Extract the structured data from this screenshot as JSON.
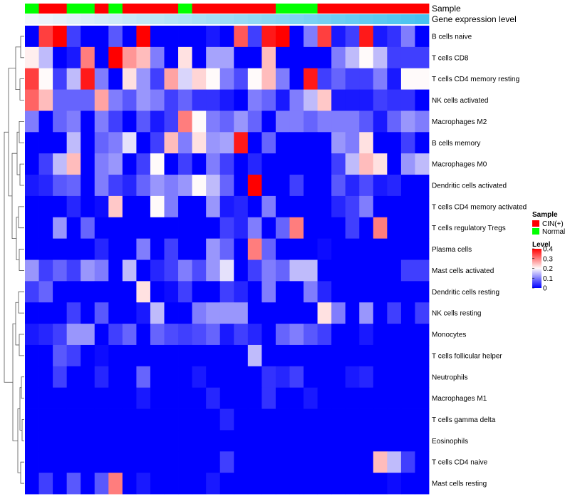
{
  "chart_data": {
    "type": "heatmap",
    "annotation_labels": {
      "sample": "Sample",
      "gene_expression": "Gene expression level"
    },
    "sample_groups": [
      "N",
      "C",
      "C",
      "N",
      "N",
      "C",
      "N",
      "C",
      "C",
      "C",
      "C",
      "N",
      "C",
      "C",
      "C",
      "C",
      "C",
      "C",
      "N",
      "N",
      "N",
      "C",
      "C",
      "C",
      "C",
      "C",
      "C",
      "C",
      "C"
    ],
    "gene_expression": [
      0.02,
      0.04,
      0.06,
      0.08,
      0.1,
      0.12,
      0.14,
      0.16,
      0.18,
      0.2,
      0.22,
      0.24,
      0.26,
      0.28,
      0.3,
      0.32,
      0.34,
      0.36,
      0.38,
      0.4,
      0.42,
      0.44,
      0.46,
      0.48,
      0.5,
      0.52,
      0.54,
      0.56,
      0.58
    ],
    "rows": [
      {
        "label": "B cells naive",
        "values": [
          0,
          0.35,
          0.4,
          0.05,
          0,
          0,
          0.07,
          0,
          0.4,
          0,
          0,
          0,
          0,
          0.02,
          0,
          0.33,
          0.05,
          0.38,
          0.4,
          0,
          0.1,
          0.35,
          0.02,
          0.05,
          0.38,
          0.02,
          0.04,
          0.1,
          0
        ]
      },
      {
        "label": "T cells CD8",
        "values": [
          0.21,
          0.15,
          0,
          0.02,
          0.3,
          0,
          0.4,
          0.28,
          0.25,
          0.1,
          0,
          0.22,
          0,
          0.13,
          0.13,
          0,
          0,
          0.25,
          0,
          0,
          0,
          0,
          0.1,
          0.15,
          0.2,
          0.15,
          0.05,
          0.05,
          0.05
        ]
      },
      {
        "label": "T cells CD4 memory resting",
        "values": [
          0.35,
          0.2,
          0.05,
          0.15,
          0.38,
          0.1,
          0,
          0.22,
          0.12,
          0.05,
          0.27,
          0.17,
          0.23,
          0.2,
          0.1,
          0.06,
          0.2,
          0.25,
          0.1,
          0,
          0.38,
          0.05,
          0.08,
          0.05,
          0.05,
          0.1,
          0.02,
          0.2,
          0.2
        ]
      },
      {
        "label": "NK cells activated",
        "values": [
          0.32,
          0.25,
          0.08,
          0.08,
          0.08,
          0.27,
          0.1,
          0.07,
          0.12,
          0.1,
          0.05,
          0.08,
          0.04,
          0.04,
          0.02,
          0,
          0.1,
          0.08,
          0.02,
          0.1,
          0.15,
          0.24,
          0.02,
          0.02,
          0.02,
          0.05,
          0.04,
          0.04,
          0
        ]
      },
      {
        "label": "Macrophages M2",
        "values": [
          0.1,
          0,
          0.08,
          0.1,
          0,
          0.1,
          0.05,
          0,
          0.07,
          0.02,
          0.05,
          0.3,
          0.2,
          0.1,
          0.08,
          0.12,
          0.08,
          0,
          0.1,
          0.1,
          0.08,
          0.1,
          0.1,
          0.1,
          0.07,
          0.02,
          0.08,
          0.12,
          0.1
        ]
      },
      {
        "label": "B cells memory",
        "values": [
          0,
          0,
          0,
          0.15,
          0,
          0.08,
          0.1,
          0.18,
          0,
          0.05,
          0.25,
          0.1,
          0.22,
          0.12,
          0.13,
          0.38,
          0,
          0.08,
          0,
          0,
          0,
          0,
          0.12,
          0.1,
          0.22,
          0,
          0,
          0.05,
          0
        ]
      },
      {
        "label": "Macrophages M0",
        "values": [
          0,
          0.05,
          0.15,
          0.25,
          0,
          0.1,
          0.12,
          0,
          0.05,
          0.2,
          0,
          0.05,
          0,
          0.1,
          0.05,
          0,
          0.03,
          0,
          0,
          0,
          0,
          0,
          0.05,
          0.15,
          0.25,
          0.22,
          0,
          0.12,
          0.15
        ]
      },
      {
        "label": "Dendritic cells activated",
        "values": [
          0.02,
          0.03,
          0.07,
          0.08,
          0,
          0.1,
          0.05,
          0.03,
          0.08,
          0.12,
          0.1,
          0.12,
          0.2,
          0.15,
          0.08,
          0,
          0.4,
          0,
          0,
          0.05,
          0,
          0,
          0.07,
          0.03,
          0.06,
          0.02,
          0.03,
          0,
          0
        ]
      },
      {
        "label": "T cells CD4 memory activated",
        "values": [
          0,
          0,
          0,
          0.03,
          0,
          0.01,
          0.24,
          0,
          0,
          0.2,
          0.1,
          0,
          0,
          0.12,
          0.02,
          0.03,
          0,
          0.1,
          0,
          0,
          0,
          0,
          0.03,
          0.05,
          0.1,
          0,
          0,
          0,
          0
        ]
      },
      {
        "label": "T cells regulatory  Tregs",
        "values": [
          0,
          0,
          0.12,
          0,
          0.08,
          0,
          0,
          0,
          0,
          0,
          0,
          0,
          0,
          0,
          0.05,
          0.03,
          0.1,
          0,
          0.08,
          0.3,
          0,
          0,
          0,
          0.05,
          0,
          0.3,
          0,
          0,
          0
        ]
      },
      {
        "label": "Plasma cells",
        "values": [
          0,
          0,
          0,
          0,
          0,
          0.03,
          0,
          0,
          0.1,
          0,
          0.05,
          0,
          0,
          0.12,
          0.08,
          0,
          0.3,
          0.08,
          0,
          0,
          0,
          0.01,
          0,
          0,
          0,
          0,
          0,
          0,
          0
        ]
      },
      {
        "label": "Mast cells activated",
        "values": [
          0.12,
          0.05,
          0.08,
          0.05,
          0.12,
          0.1,
          0,
          0.15,
          0,
          0.03,
          0.05,
          0.1,
          0.06,
          0.12,
          0.18,
          0,
          0.05,
          0.1,
          0.08,
          0.15,
          0.15,
          0,
          0,
          0,
          0,
          0,
          0,
          0.05,
          0.05
        ]
      },
      {
        "label": "Dendritic cells resting",
        "values": [
          0.05,
          0.08,
          0,
          0,
          0,
          0,
          0,
          0,
          0.22,
          0,
          0.01,
          0.05,
          0,
          0,
          0.05,
          0.03,
          0,
          0.1,
          0,
          0,
          0.1,
          0.03,
          0,
          0,
          0,
          0,
          0,
          0,
          0
        ]
      },
      {
        "label": "NK cells resting",
        "values": [
          0,
          0,
          0,
          0.05,
          0,
          0.07,
          0,
          0,
          0.02,
          0.15,
          0,
          0,
          0.1,
          0.12,
          0.12,
          0.12,
          0,
          0,
          0,
          0,
          0,
          0.22,
          0.1,
          0,
          0.12,
          0,
          0.05,
          0,
          0.05
        ]
      },
      {
        "label": "Monocytes",
        "values": [
          0.02,
          0.03,
          0.05,
          0.12,
          0.12,
          0,
          0.05,
          0.08,
          0,
          0.08,
          0.06,
          0.05,
          0.06,
          0.08,
          0.02,
          0.05,
          0.03,
          0,
          0.08,
          0.1,
          0.07,
          0.05,
          0,
          0,
          0.02,
          0,
          0,
          0,
          0
        ]
      },
      {
        "label": "T cells follicular helper",
        "values": [
          0,
          0,
          0.07,
          0.05,
          0,
          0.01,
          0,
          0,
          0,
          0,
          0,
          0,
          0,
          0,
          0,
          0,
          0.15,
          0,
          0,
          0,
          0,
          0,
          0,
          0,
          0,
          0,
          0,
          0,
          0
        ]
      },
      {
        "label": "Neutrophils",
        "values": [
          0,
          0,
          0.05,
          0,
          0,
          0.03,
          0,
          0,
          0.08,
          0,
          0,
          0,
          0.02,
          0,
          0,
          0,
          0,
          0.04,
          0.03,
          0.05,
          0,
          0,
          0,
          0.02,
          0.03,
          0,
          0,
          0,
          0
        ]
      },
      {
        "label": "Macrophages M1",
        "values": [
          0,
          0,
          0,
          0,
          0,
          0,
          0,
          0,
          0.02,
          0,
          0,
          0,
          0,
          0.03,
          0,
          0,
          0,
          0.04,
          0,
          0,
          0.02,
          0,
          0,
          0,
          0,
          0,
          0,
          0,
          0
        ]
      },
      {
        "label": "T cells gamma delta",
        "values": [
          0,
          0,
          0,
          0,
          0,
          0,
          0,
          0,
          0,
          0,
          0,
          0,
          0,
          0,
          0.03,
          0,
          0,
          0,
          0,
          0,
          0,
          0,
          0,
          0,
          0,
          0,
          0,
          0,
          0
        ]
      },
      {
        "label": "Eosinophils",
        "values": [
          0,
          0,
          0,
          0,
          0,
          0,
          0,
          0,
          0,
          0,
          0,
          0,
          0,
          0,
          0,
          0,
          0,
          0,
          0,
          0,
          0,
          0,
          0,
          0,
          0,
          0,
          0,
          0,
          0
        ]
      },
      {
        "label": "T cells CD4 naive",
        "values": [
          0,
          0,
          0,
          0,
          0,
          0,
          0,
          0,
          0,
          0,
          0,
          0,
          0,
          0,
          0.05,
          0,
          0,
          0,
          0,
          0,
          0,
          0,
          0,
          0,
          0,
          0.25,
          0.15,
          0.05,
          0
        ]
      },
      {
        "label": "Mast cells resting",
        "values": [
          0,
          0.05,
          0,
          0.07,
          0,
          0.07,
          0.3,
          0,
          0.02,
          0,
          0,
          0,
          0,
          0.02,
          0,
          0,
          0,
          0,
          0,
          0,
          0,
          0,
          0,
          0,
          0,
          0,
          0.01,
          0,
          0
        ]
      }
    ],
    "color_scale": {
      "low": "#0000ff",
      "mid": "#fffafa",
      "high": "#ff0000",
      "min": 0,
      "mid_value": 0.2,
      "max": 0.4
    },
    "legend": {
      "sample_title": "Sample",
      "sample_items": [
        {
          "key": "C",
          "label": "CIN(+)",
          "color": "#ff0000"
        },
        {
          "key": "N",
          "label": "Normal",
          "color": "#00ff00"
        }
      ],
      "level_title": "Level",
      "level_ticks": [
        "0.4",
        "0.3",
        "0.2",
        "0.1",
        "0"
      ],
      "level_tick_values": [
        0.4,
        0.3,
        0.2,
        0.1,
        0
      ]
    },
    "gene_expression_colors": {
      "low": "#f2f6fb",
      "high": "#48c2f0"
    },
    "dendrogram": "left, hierarchical clustering of rows"
  }
}
